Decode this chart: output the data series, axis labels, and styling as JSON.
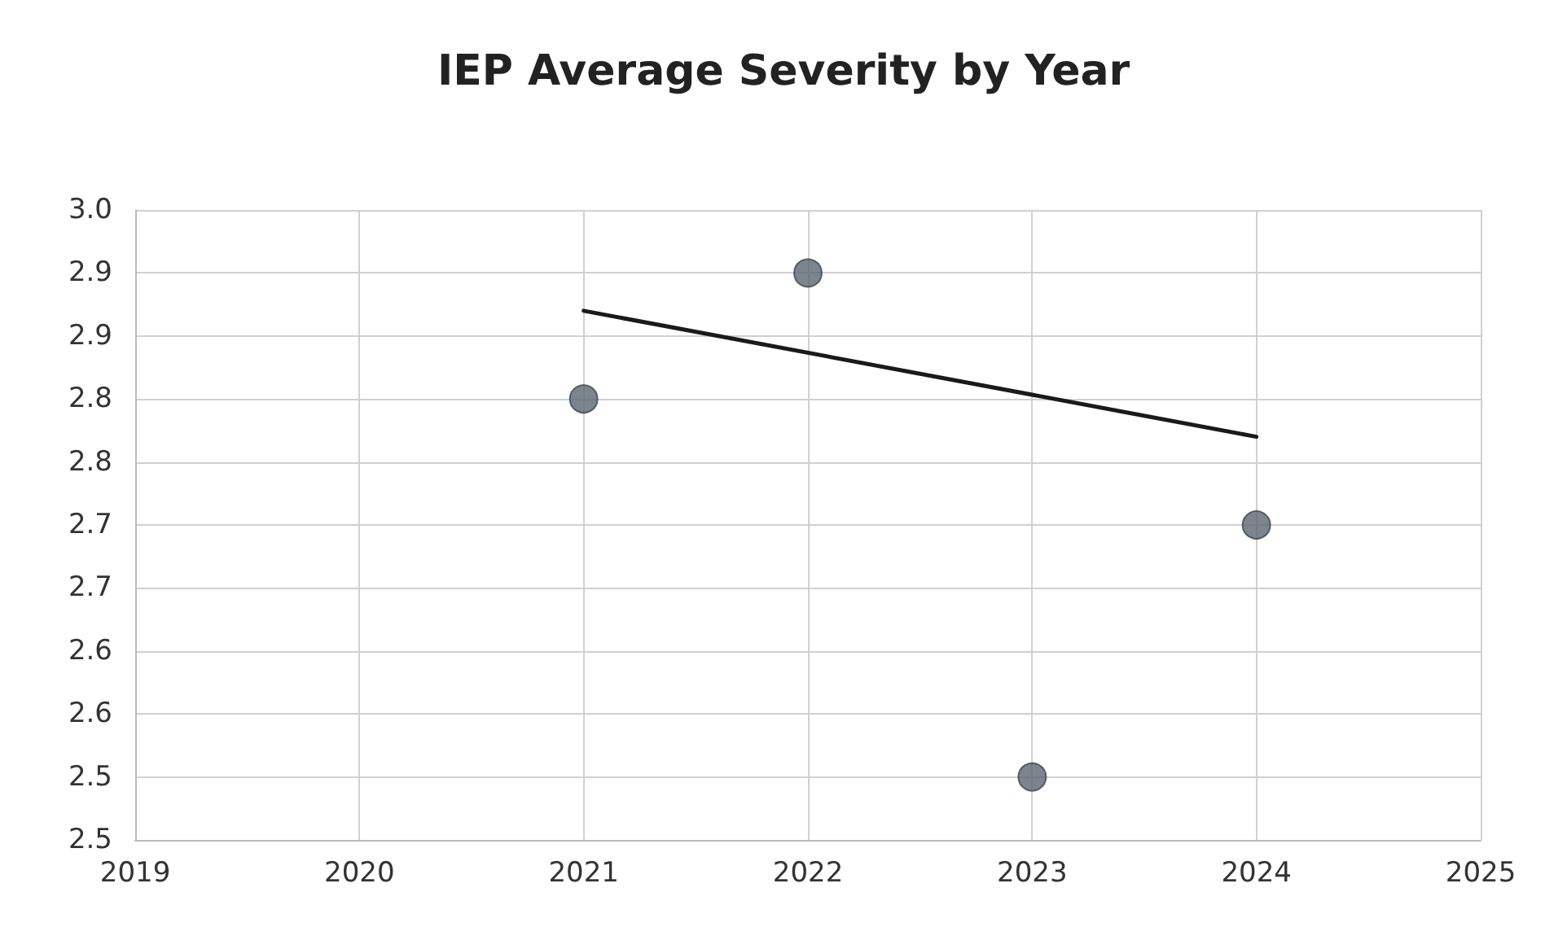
{
  "chart_data": {
    "type": "scatter",
    "title": "IEP Average Severity by Year",
    "series": [
      {
        "color": "#5b6670",
        "x": [
          2021,
          2022,
          2023,
          2024
        ],
        "values": [
          2.85,
          2.95,
          2.55,
          2.75
        ],
        "marker": "circle"
      },
      {
        "type": "line",
        "color": "#1a1a1a",
        "x": [
          2021,
          2024
        ],
        "values": [
          2.92,
          2.82
        ],
        "marker": "none",
        "line_style": "solid"
      }
    ],
    "xlim": [
      2019,
      2025
    ],
    "xticks": [
      2019,
      2020,
      2021,
      2022,
      2023,
      2024,
      2025
    ],
    "ylim": [
      2.5,
      3.0
    ],
    "yticks": [
      {
        "value": 2.5,
        "label": "2.5"
      },
      {
        "value": 2.55,
        "label": "2.5"
      },
      {
        "value": 2.6,
        "label": "2.6"
      },
      {
        "value": 2.65,
        "label": "2.6"
      },
      {
        "value": 2.7,
        "label": "2.7"
      },
      {
        "value": 2.75,
        "label": "2.7"
      },
      {
        "value": 2.8,
        "label": "2.8"
      },
      {
        "value": 2.85,
        "label": "2.8"
      },
      {
        "value": 2.9,
        "label": "2.9"
      },
      {
        "value": 2.95,
        "label": "2.9"
      },
      {
        "value": 3.0,
        "label": "3.0"
      }
    ],
    "grid": true
  }
}
